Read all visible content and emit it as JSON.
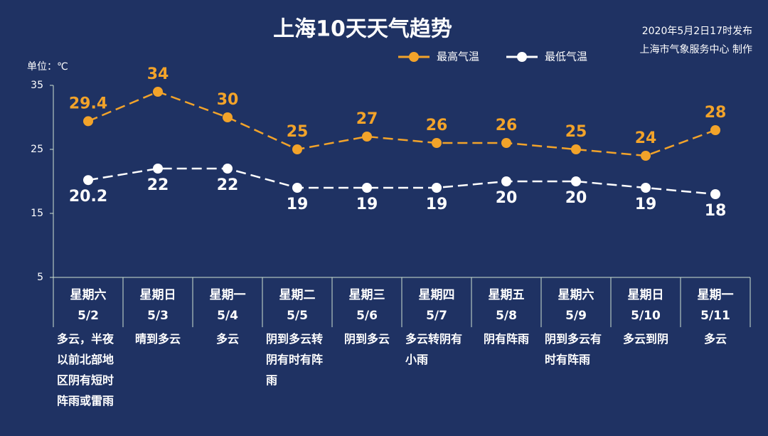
{
  "chart_data": {
    "type": "line",
    "title": "上海10天天气趋势",
    "publish_time": "2020年5月2日17时发布",
    "publisher": "上海市气象服务中心 制作",
    "unit_label": "单位：℃",
    "weekdays": [
      "星期六",
      "星期日",
      "星期一",
      "星期二",
      "星期三",
      "星期四",
      "星期五",
      "星期六",
      "星期日",
      "星期一"
    ],
    "categories": [
      "5/2",
      "5/3",
      "5/4",
      "5/5",
      "5/6",
      "5/7",
      "5/8",
      "5/9",
      "5/10",
      "5/11"
    ],
    "weather": [
      "多云，半夜以前北部地区阴有短时阵雨或雷雨",
      "晴到多云",
      "多云",
      "阴到多云转阴有时有阵雨",
      "阴到多云",
      "多云转阴有小雨",
      "阴有阵雨",
      "阴到多云有时有阵雨",
      "多云到阴",
      "多云"
    ],
    "series": [
      {
        "name": "最高气温",
        "color": "#f2a32a",
        "values": [
          29.4,
          34,
          30,
          25,
          27,
          26,
          26,
          25,
          24,
          28
        ]
      },
      {
        "name": "最低气温",
        "color": "#ffffff",
        "values": [
          20.2,
          22,
          22,
          19,
          19,
          19,
          20,
          20,
          19,
          18
        ]
      }
    ],
    "ylim": [
      5,
      35
    ],
    "yticks": [
      5,
      15,
      25,
      35
    ]
  }
}
